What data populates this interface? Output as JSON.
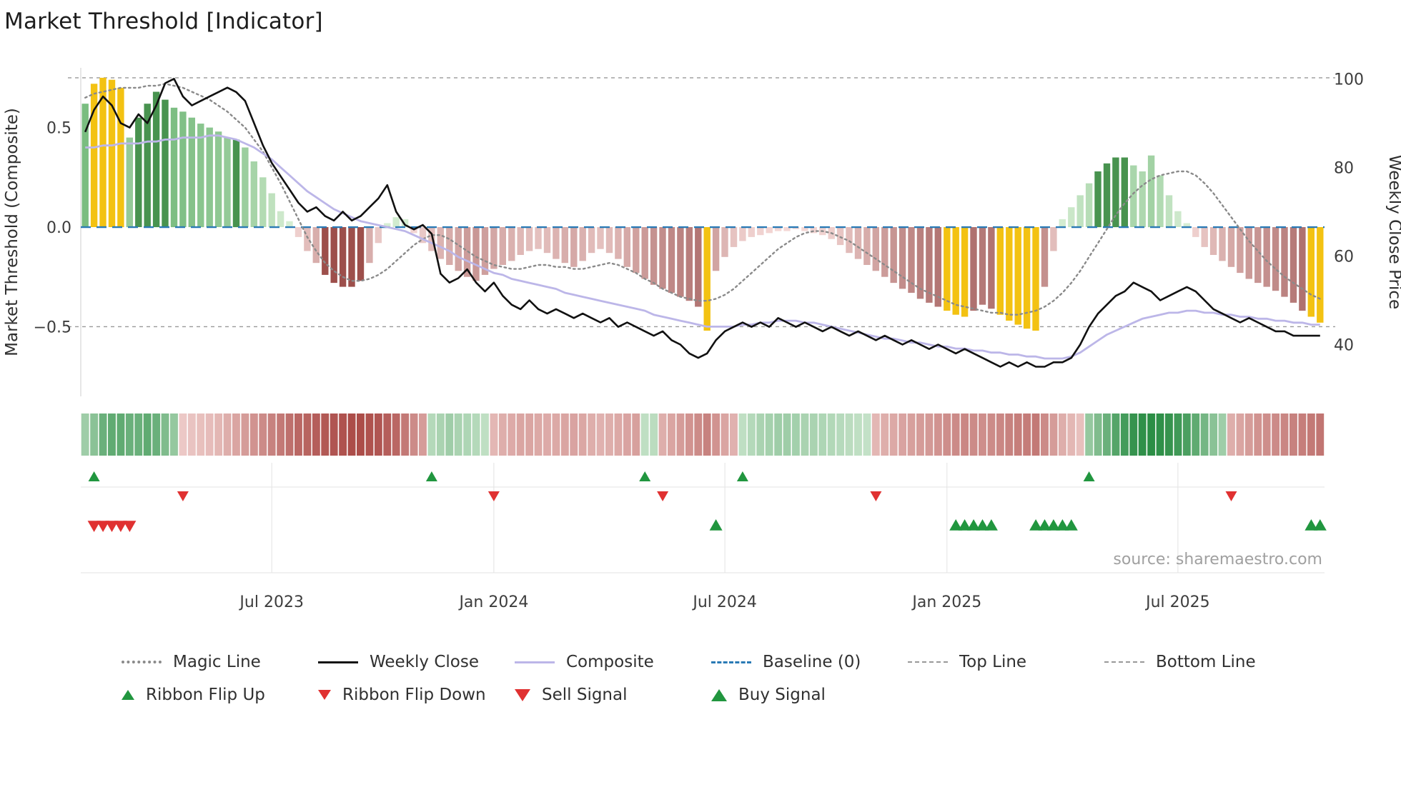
{
  "title": "Market Threshold [Indicator]",
  "source": "source: sharemaestro.com",
  "legend": {
    "row1": [
      {
        "label": "Magic Line",
        "type": "line-dotted",
        "color": "#8a8a8a"
      },
      {
        "label": "Weekly Close",
        "type": "line-solid",
        "color": "#111111"
      },
      {
        "label": "Composite",
        "type": "line-solid",
        "color": "#bcb6e8"
      },
      {
        "label": "Baseline (0)",
        "type": "line-dashed",
        "color": "#2a7ab5"
      },
      {
        "label": "Top Line",
        "type": "line-dashed-small",
        "color": "#999999"
      },
      {
        "label": "Bottom Line",
        "type": "line-dashed-small",
        "color": "#999999"
      }
    ],
    "row2": [
      {
        "label": "Ribbon Flip Up",
        "type": "triangle-up",
        "color": "#21963f"
      },
      {
        "label": "Ribbon Flip Down",
        "type": "triangle-down",
        "color": "#e03131"
      },
      {
        "label": "Sell Signal",
        "type": "triangle-down-large",
        "color": "#e03131"
      },
      {
        "label": "Buy Signal",
        "type": "triangle-up-large",
        "color": "#21963f"
      }
    ]
  },
  "chart_data": {
    "type": "bar",
    "subtype": "weekly composite histogram with overlay lines, momentum ribbon and signal markers",
    "title": "Market Threshold [Indicator]",
    "n_weeks": 140,
    "top_line": 0.75,
    "bottom_line": -0.5,
    "baseline": 0,
    "left_axis": {
      "label": "Market Threshold (Composite)",
      "range": [
        -0.85,
        0.8
      ],
      "ticks": [
        {
          "v": 0.5,
          "label": "0.5"
        },
        {
          "v": 0,
          "label": "0.0"
        },
        {
          "v": -0.5,
          "label": "−0.5"
        }
      ]
    },
    "right_axis": {
      "label": "Weekly Close Price",
      "anchors": [
        [
          100,
          0.745
        ],
        [
          40,
          -0.59
        ]
      ],
      "ticks": [
        {
          "v": 100,
          "label": "100"
        },
        {
          "v": 80,
          "label": "80"
        },
        {
          "v": 60,
          "label": "60"
        },
        {
          "v": 40,
          "label": "40"
        }
      ]
    },
    "x_ticks": [
      {
        "i": 21,
        "label": "Jul 2023"
      },
      {
        "i": 46,
        "label": "Jan 2024"
      },
      {
        "i": 72,
        "label": "Jul 2024"
      },
      {
        "i": 97,
        "label": "Jan 2025"
      },
      {
        "i": 123,
        "label": "Jul 2025"
      }
    ],
    "series": {
      "composite_bars": [
        0.62,
        0.72,
        0.75,
        0.74,
        0.7,
        0.45,
        0.55,
        0.62,
        0.68,
        0.64,
        0.6,
        0.58,
        0.55,
        0.52,
        0.5,
        0.48,
        0.45,
        0.44,
        0.4,
        0.33,
        0.25,
        0.17,
        0.08,
        0.03,
        -0.05,
        -0.12,
        -0.18,
        -0.24,
        -0.28,
        -0.3,
        -0.3,
        -0.27,
        -0.18,
        -0.08,
        0.02,
        0.05,
        0.04,
        -0.03,
        -0.08,
        -0.12,
        -0.16,
        -0.19,
        -0.22,
        -0.25,
        -0.27,
        -0.24,
        -0.21,
        -0.19,
        -0.17,
        -0.14,
        -0.12,
        -0.11,
        -0.13,
        -0.16,
        -0.18,
        -0.2,
        -0.17,
        -0.13,
        -0.11,
        -0.13,
        -0.16,
        -0.2,
        -0.23,
        -0.26,
        -0.29,
        -0.31,
        -0.33,
        -0.35,
        -0.37,
        -0.4,
        -0.52,
        -0.22,
        -0.15,
        -0.1,
        -0.07,
        -0.05,
        -0.04,
        -0.03,
        -0.02,
        -0.02,
        -0.01,
        -0.02,
        -0.03,
        -0.04,
        -0.06,
        -0.09,
        -0.13,
        -0.16,
        -0.19,
        -0.22,
        -0.25,
        -0.28,
        -0.31,
        -0.33,
        -0.36,
        -0.38,
        -0.4,
        -0.42,
        -0.44,
        -0.45,
        -0.42,
        -0.39,
        -0.41,
        -0.44,
        -0.47,
        -0.49,
        -0.51,
        -0.52,
        -0.3,
        -0.12,
        0.04,
        0.1,
        0.16,
        0.22,
        0.28,
        0.32,
        0.35,
        0.35,
        0.31,
        0.28,
        0.36,
        0.26,
        0.16,
        0.08,
        0.02,
        -0.05,
        -0.1,
        -0.14,
        -0.17,
        -0.2,
        -0.23,
        -0.26,
        -0.28,
        -0.3,
        -0.32,
        -0.35,
        -0.38,
        -0.42,
        -0.45,
        -0.48
      ],
      "highlight_bars": [
        1,
        2,
        3,
        4,
        70,
        97,
        98,
        99,
        103,
        104,
        105,
        106,
        107,
        138,
        139
      ],
      "dark_bars": [
        6,
        7,
        8,
        9,
        17,
        27,
        28,
        29,
        30,
        31,
        114,
        115,
        116,
        117
      ],
      "weekly_close": [
        88,
        93,
        96,
        94,
        90,
        89,
        92,
        90,
        94,
        99,
        100,
        96,
        94,
        95,
        96,
        97,
        98,
        97,
        95,
        90,
        85,
        81,
        78,
        75,
        72,
        70,
        71,
        69,
        68,
        70,
        68,
        69,
        71,
        73,
        76,
        70,
        67,
        66,
        67,
        65,
        56,
        54,
        55,
        57,
        54,
        52,
        54,
        51,
        49,
        48,
        50,
        48,
        47,
        48,
        47,
        46,
        47,
        46,
        45,
        46,
        44,
        45,
        44,
        43,
        42,
        43,
        41,
        40,
        38,
        37,
        38,
        41,
        43,
        44,
        45,
        44,
        45,
        44,
        46,
        45,
        44,
        45,
        44,
        43,
        44,
        43,
        42,
        43,
        42,
        41,
        42,
        41,
        40,
        41,
        40,
        39,
        40,
        39,
        38,
        39,
        38,
        37,
        36,
        35,
        36,
        35,
        36,
        35,
        35,
        36,
        36,
        37,
        40,
        44,
        47,
        49,
        51,
        52,
        54,
        53,
        52,
        50,
        51,
        52,
        53,
        52,
        50,
        48,
        47,
        46,
        45,
        46,
        45,
        44,
        43,
        43,
        42,
        42,
        42,
        42
      ],
      "magic_line": [
        0.65,
        0.67,
        0.68,
        0.69,
        0.7,
        0.7,
        0.7,
        0.71,
        0.71,
        0.72,
        0.71,
        0.7,
        0.68,
        0.66,
        0.64,
        0.61,
        0.58,
        0.54,
        0.5,
        0.44,
        0.38,
        0.3,
        0.22,
        0.13,
        0.04,
        -0.05,
        -0.12,
        -0.18,
        -0.22,
        -0.25,
        -0.27,
        -0.27,
        -0.26,
        -0.24,
        -0.21,
        -0.17,
        -0.13,
        -0.09,
        -0.06,
        -0.04,
        -0.04,
        -0.06,
        -0.09,
        -0.12,
        -0.15,
        -0.17,
        -0.19,
        -0.2,
        -0.21,
        -0.21,
        -0.2,
        -0.19,
        -0.19,
        -0.2,
        -0.2,
        -0.21,
        -0.21,
        -0.2,
        -0.19,
        -0.18,
        -0.19,
        -0.21,
        -0.23,
        -0.26,
        -0.28,
        -0.31,
        -0.33,
        -0.35,
        -0.36,
        -0.37,
        -0.37,
        -0.36,
        -0.34,
        -0.31,
        -0.27,
        -0.23,
        -0.19,
        -0.15,
        -0.11,
        -0.08,
        -0.05,
        -0.03,
        -0.02,
        -0.02,
        -0.03,
        -0.05,
        -0.07,
        -0.1,
        -0.13,
        -0.16,
        -0.19,
        -0.22,
        -0.25,
        -0.28,
        -0.31,
        -0.33,
        -0.35,
        -0.37,
        -0.39,
        -0.4,
        -0.41,
        -0.42,
        -0.43,
        -0.43,
        -0.44,
        -0.44,
        -0.43,
        -0.42,
        -0.4,
        -0.37,
        -0.33,
        -0.28,
        -0.22,
        -0.15,
        -0.08,
        -0.01,
        0.06,
        0.12,
        0.17,
        0.21,
        0.24,
        0.26,
        0.27,
        0.28,
        0.28,
        0.26,
        0.22,
        0.17,
        0.11,
        0.05,
        -0.01,
        -0.07,
        -0.12,
        -0.17,
        -0.21,
        -0.25,
        -0.28,
        -0.31,
        -0.34,
        -0.36
      ],
      "composite_line": [
        0.4,
        0.4,
        0.41,
        0.41,
        0.42,
        0.42,
        0.42,
        0.43,
        0.43,
        0.44,
        0.44,
        0.45,
        0.45,
        0.45,
        0.46,
        0.46,
        0.45,
        0.44,
        0.42,
        0.4,
        0.37,
        0.34,
        0.3,
        0.26,
        0.22,
        0.18,
        0.15,
        0.12,
        0.09,
        0.07,
        0.05,
        0.03,
        0.02,
        0.01,
        0.0,
        -0.01,
        -0.02,
        -0.04,
        -0.06,
        -0.08,
        -0.1,
        -0.12,
        -0.15,
        -0.17,
        -0.19,
        -0.21,
        -0.23,
        -0.24,
        -0.26,
        -0.27,
        -0.28,
        -0.29,
        -0.3,
        -0.31,
        -0.33,
        -0.34,
        -0.35,
        -0.36,
        -0.37,
        -0.38,
        -0.39,
        -0.4,
        -0.41,
        -0.42,
        -0.44,
        -0.45,
        -0.46,
        -0.47,
        -0.48,
        -0.49,
        -0.5,
        -0.5,
        -0.5,
        -0.5,
        -0.49,
        -0.49,
        -0.48,
        -0.48,
        -0.47,
        -0.47,
        -0.47,
        -0.48,
        -0.48,
        -0.49,
        -0.5,
        -0.51,
        -0.52,
        -0.53,
        -0.54,
        -0.55,
        -0.56,
        -0.56,
        -0.57,
        -0.58,
        -0.58,
        -0.59,
        -0.6,
        -0.6,
        -0.61,
        -0.61,
        -0.62,
        -0.62,
        -0.63,
        -0.63,
        -0.64,
        -0.64,
        -0.65,
        -0.65,
        -0.66,
        -0.66,
        -0.66,
        -0.65,
        -0.63,
        -0.6,
        -0.57,
        -0.54,
        -0.52,
        -0.5,
        -0.48,
        -0.46,
        -0.45,
        -0.44,
        -0.43,
        -0.43,
        -0.42,
        -0.42,
        -0.43,
        -0.43,
        -0.44,
        -0.44,
        -0.45,
        -0.45,
        -0.46,
        -0.46,
        -0.47,
        -0.47,
        -0.48,
        -0.48,
        -0.49,
        -0.49
      ],
      "ribbon": [
        0.35,
        0.45,
        0.6,
        0.65,
        0.65,
        0.6,
        0.6,
        0.65,
        0.6,
        0.5,
        0.4,
        -0.15,
        -0.18,
        -0.2,
        -0.22,
        -0.25,
        -0.3,
        -0.35,
        -0.4,
        -0.45,
        -0.5,
        -0.55,
        -0.6,
        -0.65,
        -0.7,
        -0.72,
        -0.75,
        -0.78,
        -0.8,
        -0.82,
        -0.85,
        -0.85,
        -0.82,
        -0.8,
        -0.75,
        -0.7,
        -0.6,
        -0.5,
        -0.4,
        0.25,
        0.3,
        0.35,
        0.3,
        0.28,
        0.25,
        0.2,
        -0.25,
        -0.3,
        -0.32,
        -0.35,
        -0.35,
        -0.33,
        -0.32,
        -0.33,
        -0.35,
        -0.36,
        -0.34,
        -0.3,
        -0.28,
        -0.3,
        -0.33,
        -0.36,
        -0.38,
        0.2,
        0.22,
        -0.3,
        -0.35,
        -0.4,
        -0.45,
        -0.5,
        -0.55,
        -0.45,
        -0.35,
        -0.28,
        0.2,
        0.25,
        0.3,
        0.32,
        0.35,
        0.35,
        0.33,
        0.3,
        0.3,
        0.28,
        0.26,
        0.24,
        0.22,
        0.2,
        0.18,
        -0.25,
        -0.3,
        -0.33,
        -0.36,
        -0.38,
        -0.4,
        -0.42,
        -0.45,
        -0.48,
        -0.5,
        -0.52,
        -0.5,
        -0.48,
        -0.5,
        -0.52,
        -0.55,
        -0.57,
        -0.58,
        -0.6,
        -0.5,
        -0.4,
        -0.3,
        -0.25,
        -0.2,
        0.4,
        0.5,
        0.6,
        0.7,
        0.78,
        0.85,
        0.88,
        0.9,
        0.88,
        0.85,
        0.8,
        0.75,
        0.65,
        0.55,
        0.45,
        0.35,
        -0.3,
        -0.35,
        -0.4,
        -0.45,
        -0.48,
        -0.5,
        -0.52,
        -0.55,
        -0.57,
        -0.6,
        -0.62
      ]
    },
    "signals": {
      "ribbon_flip_up": [
        1,
        39,
        63,
        74,
        113
      ],
      "ribbon_flip_down": [
        11,
        46,
        65,
        89,
        129
      ],
      "sell": [
        1,
        2,
        3,
        4,
        5
      ],
      "buy": [
        71,
        98,
        99,
        100,
        101,
        102,
        107,
        108,
        109,
        110,
        111,
        138,
        139
      ]
    },
    "colors": {
      "pos_light": "#d9efd6",
      "pos_dark": "#66b26e",
      "pos_emph": "#48934f",
      "neg_light": "#f7dcda",
      "neg_dark": "#99504e",
      "neg_emph": "#9d4f4b",
      "highlight": "#f3c212",
      "weekly_close": "#111111",
      "magic": "#8a8a8a",
      "composite_line": "#bcb6e8",
      "baseline": "#2a7ab5",
      "guide": "#999999",
      "ribbon_pos_light": "#e9f6e7",
      "ribbon_pos_dark": "#168233",
      "ribbon_neg_light": "#fae3e1",
      "ribbon_neg_dark": "#9e322e",
      "buy": "#21963f",
      "sell": "#e03131",
      "grid": "#e3e3e3",
      "spine": "#cccccc",
      "tick_text": "#3d3d3d",
      "source_text": "#a0a0a0"
    }
  }
}
